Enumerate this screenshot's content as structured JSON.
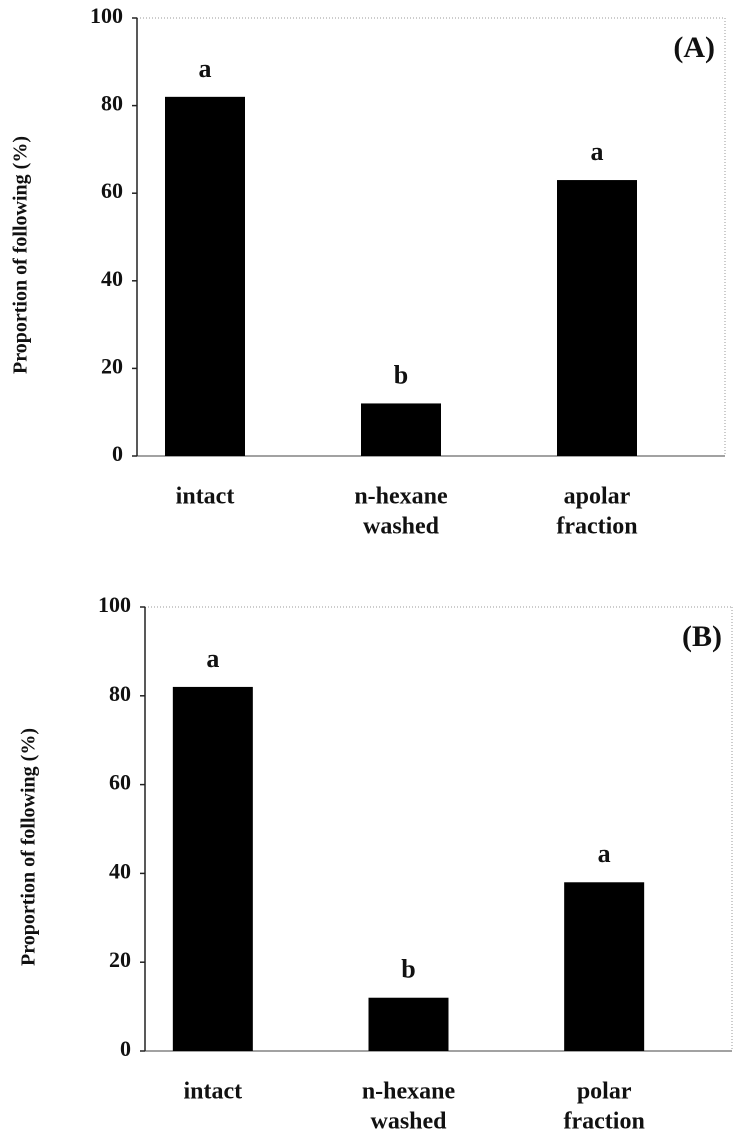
{
  "chart_data": [
    {
      "type": "bar",
      "panel_label": "(A)",
      "y_label": "Proportion of following (%)",
      "categories": [
        [
          "intact"
        ],
        [
          "n-hexane",
          "washed"
        ],
        [
          "apolar",
          "fraction"
        ]
      ],
      "values": [
        82,
        12,
        63
      ],
      "annotations": [
        "a",
        "b",
        "a"
      ],
      "color": "#000000",
      "ylim": [
        0,
        100
      ],
      "yticks": [
        0,
        20,
        40,
        60,
        80,
        100
      ]
    },
    {
      "type": "bar",
      "panel_label": "(B)",
      "y_label": "Proportion of following (%)",
      "categories": [
        [
          "intact"
        ],
        [
          "n-hexane",
          "washed"
        ],
        [
          "polar",
          "fraction"
        ]
      ],
      "values": [
        82,
        12,
        38
      ],
      "annotations": [
        "a",
        "b",
        "a"
      ],
      "color": "#000000",
      "ylim": [
        0,
        100
      ],
      "yticks": [
        0,
        20,
        40,
        60,
        80,
        100
      ]
    }
  ]
}
